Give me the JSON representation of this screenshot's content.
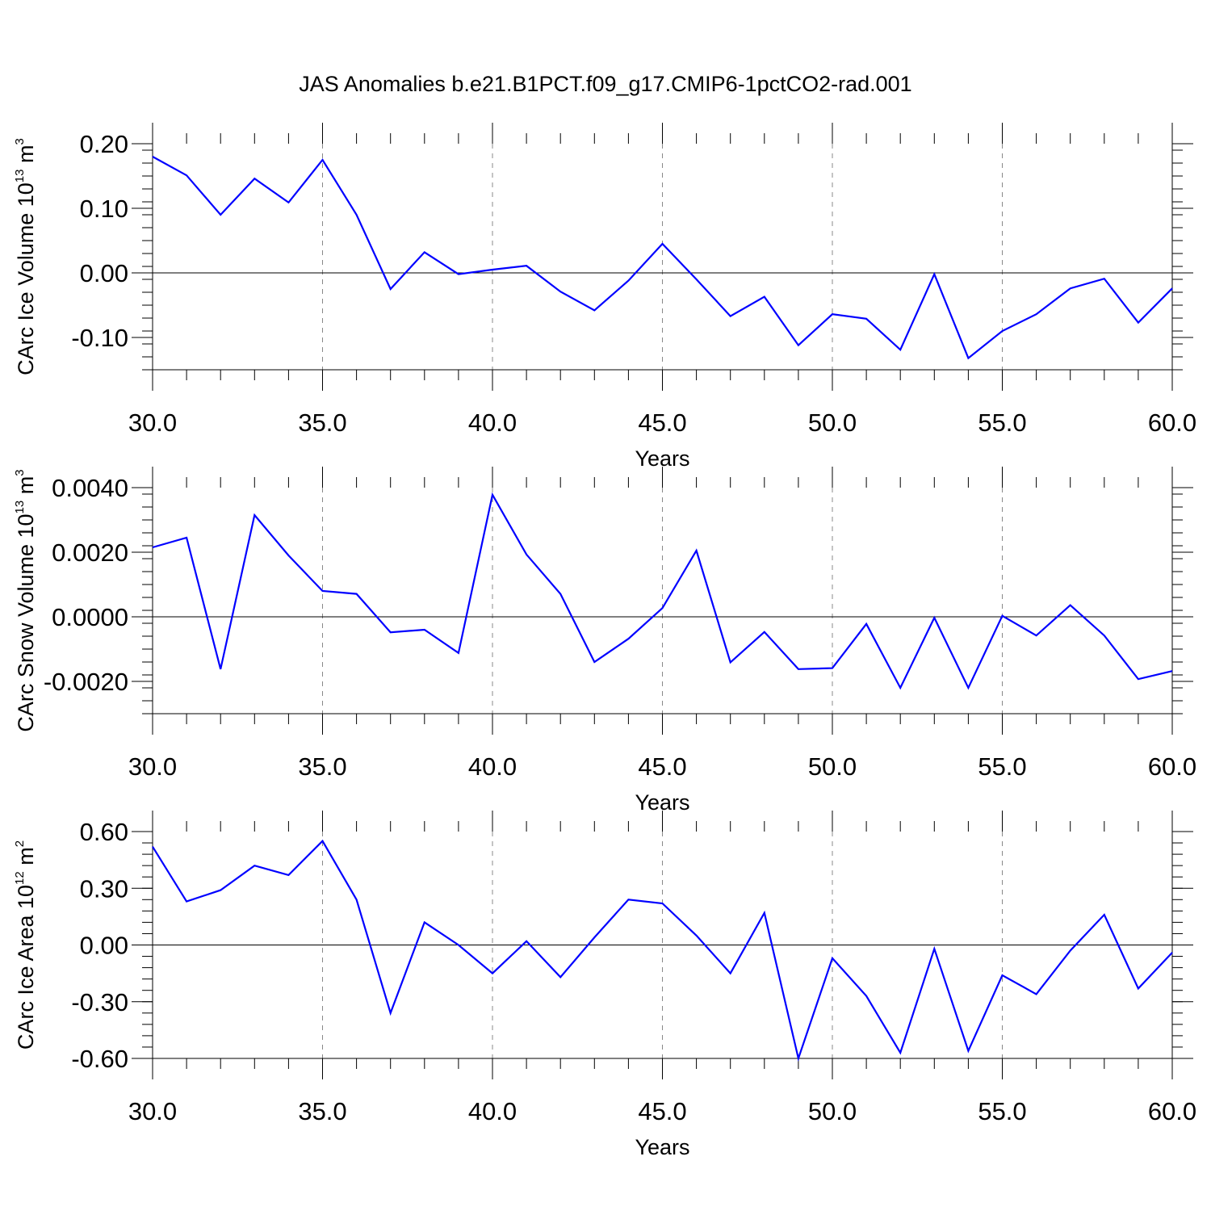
{
  "figure_title": "JAS Anomalies b.e21.B1PCT.f09_g17.CMIP6-1pctCO2-rad.001",
  "colors": {
    "series": "#0000ff",
    "axes": "#000000",
    "grid": "#888888"
  },
  "chart_data": [
    {
      "type": "line",
      "xlabel": "Years",
      "ylabel_main": "CArc Ice Volume 10",
      "ylabel_sup": "13",
      "ylabel_unit": " m",
      "ylabel_unit_sup": "3",
      "xlim": [
        30,
        60
      ],
      "ylim": [
        -0.15,
        0.2
      ],
      "x_ticks": [
        30,
        35,
        40,
        45,
        50,
        55,
        60
      ],
      "x_tick_labels": [
        "30.0",
        "35.0",
        "40.0",
        "45.0",
        "50.0",
        "55.0",
        "60.0"
      ],
      "y_ticks": [
        -0.1,
        0.0,
        0.1,
        0.2
      ],
      "y_tick_labels": [
        "-0.10",
        "0.00",
        "0.10",
        "0.20"
      ],
      "grid": "x-dashed",
      "x": [
        30,
        31,
        32,
        33,
        34,
        35,
        36,
        37,
        38,
        39,
        40,
        41,
        42,
        43,
        44,
        45,
        46,
        47,
        48,
        49,
        50,
        51,
        52,
        53,
        54,
        55,
        56,
        57,
        58,
        59,
        60
      ],
      "y": [
        0.18,
        0.151,
        0.09,
        0.146,
        0.109,
        0.175,
        0.09,
        -0.025,
        0.032,
        -0.002,
        0.005,
        0.011,
        -0.029,
        -0.058,
        -0.012,
        0.045,
        -0.01,
        -0.067,
        -0.037,
        -0.112,
        -0.064,
        -0.071,
        -0.119,
        -0.002,
        -0.132,
        -0.09,
        -0.064,
        -0.024,
        -0.009,
        -0.077,
        -0.024
      ]
    },
    {
      "type": "line",
      "xlabel": "Years",
      "ylabel_main": "CArc Snow Volume 10",
      "ylabel_sup": "13",
      "ylabel_unit": " m",
      "ylabel_unit_sup": "3",
      "xlim": [
        30,
        60
      ],
      "ylim": [
        -0.003,
        0.004
      ],
      "x_ticks": [
        30,
        35,
        40,
        45,
        50,
        55,
        60
      ],
      "x_tick_labels": [
        "30.0",
        "35.0",
        "40.0",
        "45.0",
        "50.0",
        "55.0",
        "60.0"
      ],
      "y_ticks": [
        -0.002,
        0.0,
        0.002,
        0.004
      ],
      "y_tick_labels": [
        "-0.0020",
        "0.0000",
        "0.0020",
        "0.0040"
      ],
      "grid": "x-dashed",
      "x": [
        30,
        31,
        32,
        33,
        34,
        35,
        36,
        37,
        38,
        39,
        40,
        41,
        42,
        43,
        44,
        45,
        46,
        47,
        48,
        49,
        50,
        51,
        52,
        53,
        54,
        55,
        56,
        57,
        58,
        59,
        60
      ],
      "y": [
        0.00215,
        0.00245,
        -0.00162,
        0.00315,
        0.0019,
        0.0008,
        0.00071,
        -0.00048,
        -0.0004,
        -0.00112,
        0.00378,
        0.00193,
        0.00071,
        -0.0014,
        -0.00068,
        0.00027,
        0.00205,
        -0.00141,
        -0.00047,
        -0.00162,
        -0.00159,
        -0.00022,
        -0.0022,
        -3e-05,
        -0.0022,
        3e-05,
        -0.00058,
        0.00036,
        -0.00058,
        -0.00193,
        -0.00168
      ]
    },
    {
      "type": "line",
      "xlabel": "Years",
      "ylabel_main": "CArc Ice Area 10",
      "ylabel_sup": "12",
      "ylabel_unit": " m",
      "ylabel_unit_sup": "2",
      "xlim": [
        30,
        60
      ],
      "ylim": [
        -0.6,
        0.6
      ],
      "x_ticks": [
        30,
        35,
        40,
        45,
        50,
        55,
        60
      ],
      "x_tick_labels": [
        "30.0",
        "35.0",
        "40.0",
        "45.0",
        "50.0",
        "55.0",
        "60.0"
      ],
      "y_ticks": [
        -0.6,
        -0.3,
        0.0,
        0.3,
        0.6
      ],
      "y_tick_labels": [
        "-0.60",
        "-0.30",
        "0.00",
        "0.30",
        "0.60"
      ],
      "grid": "x-dashed",
      "x": [
        30,
        31,
        32,
        33,
        34,
        35,
        36,
        37,
        38,
        39,
        40,
        41,
        42,
        43,
        44,
        45,
        46,
        47,
        48,
        49,
        50,
        51,
        52,
        53,
        54,
        55,
        56,
        57,
        58,
        59,
        60
      ],
      "y": [
        0.52,
        0.23,
        0.29,
        0.42,
        0.37,
        0.55,
        0.24,
        -0.36,
        0.12,
        0.0,
        -0.15,
        0.02,
        -0.17,
        0.04,
        0.24,
        0.22,
        0.05,
        -0.15,
        0.17,
        -0.6,
        -0.07,
        -0.27,
        -0.57,
        -0.02,
        -0.56,
        -0.16,
        -0.26,
        -0.03,
        0.16,
        -0.23,
        -0.04
      ]
    }
  ]
}
